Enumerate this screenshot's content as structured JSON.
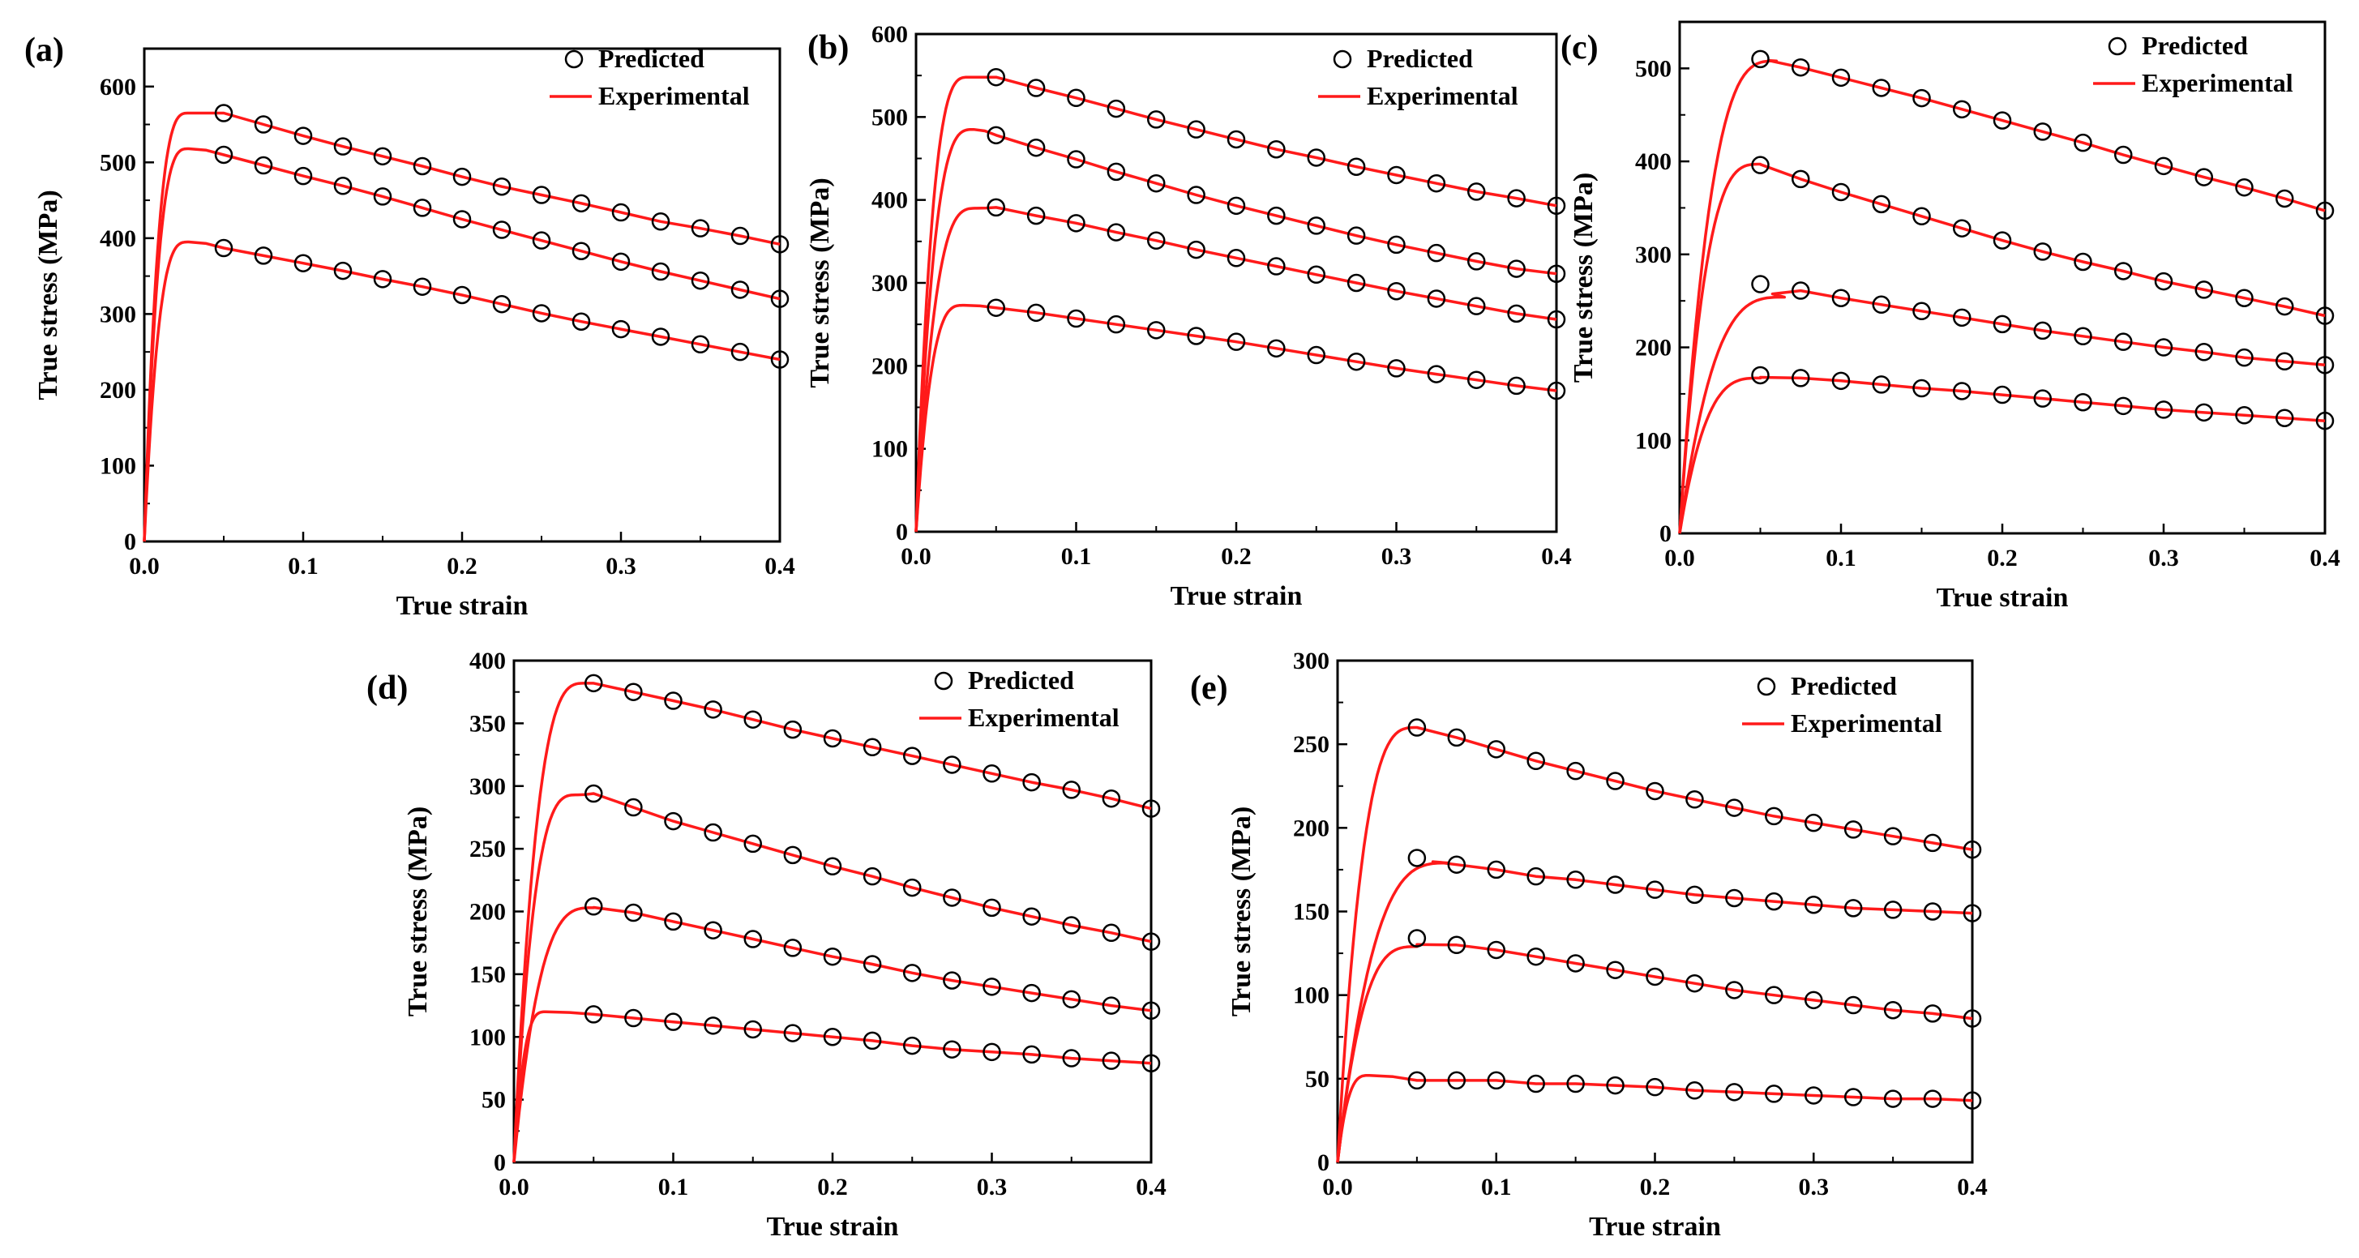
{
  "figure": {
    "legend": {
      "predicted": "Predicted",
      "experimental": "Experimental"
    },
    "colors": {
      "experimental": "#ff1a1a",
      "predicted_marker": "#000000",
      "axes": "#000000"
    }
  },
  "chart_data": [
    {
      "type": "line",
      "panel_label": "(a)",
      "xlabel": "True strain",
      "ylabel": "True stress (MPa)",
      "xlim": [
        0,
        0.4
      ],
      "ylim": [
        0,
        650
      ],
      "xticks": [
        0.0,
        0.1,
        0.2,
        0.3,
        0.4
      ],
      "xtick_labels": [
        "0.0",
        "0.1",
        "0.2",
        "0.3",
        "0.4"
      ],
      "yticks": [
        0,
        100,
        200,
        300,
        400,
        500,
        600
      ],
      "ytick_labels": [
        "0",
        "100",
        "200",
        "300",
        "400",
        "500",
        "600"
      ],
      "legend_position": "top-right",
      "predicted_x": [
        0.05,
        0.075,
        0.1,
        0.125,
        0.15,
        0.175,
        0.2,
        0.225,
        0.25,
        0.275,
        0.3,
        0.325,
        0.35,
        0.375,
        0.4
      ],
      "series": [
        {
          "name": "curve-1",
          "peak": 565,
          "peak_strain": 0.028,
          "predicted": [
            565,
            550,
            535,
            521,
            508,
            495,
            481,
            468,
            457,
            446,
            434,
            422,
            413,
            403,
            392
          ]
        },
        {
          "name": "curve-2",
          "peak": 518,
          "peak_strain": 0.028,
          "predicted": [
            510,
            496,
            482,
            469,
            455,
            440,
            425,
            411,
            397,
            383,
            369,
            356,
            344,
            332,
            320
          ]
        },
        {
          "name": "curve-3",
          "peak": 395,
          "peak_strain": 0.028,
          "predicted": [
            387,
            377,
            367,
            357,
            346,
            336,
            325,
            313,
            301,
            290,
            280,
            270,
            260,
            250,
            240
          ]
        }
      ]
    },
    {
      "type": "line",
      "panel_label": "(b)",
      "xlabel": "True strain",
      "ylabel": "True stress (MPa)",
      "xlim": [
        0,
        0.4
      ],
      "ylim": [
        0,
        600
      ],
      "xticks": [
        0.0,
        0.1,
        0.2,
        0.3,
        0.4
      ],
      "xtick_labels": [
        "0.0",
        "0.1",
        "0.2",
        "0.3",
        "0.4"
      ],
      "yticks": [
        0,
        100,
        200,
        300,
        400,
        500,
        600
      ],
      "ytick_labels": [
        "0",
        "100",
        "200",
        "300",
        "400",
        "500",
        "600"
      ],
      "legend_position": "top-right",
      "predicted_x": [
        0.05,
        0.075,
        0.1,
        0.125,
        0.15,
        0.175,
        0.2,
        0.225,
        0.25,
        0.275,
        0.3,
        0.325,
        0.35,
        0.375,
        0.4
      ],
      "series": [
        {
          "name": "curve-1",
          "peak": 548,
          "peak_strain": 0.033,
          "predicted": [
            548,
            535,
            523,
            510,
            497,
            485,
            473,
            461,
            451,
            440,
            430,
            420,
            410,
            402,
            393
          ]
        },
        {
          "name": "curve-2",
          "peak": 485,
          "peak_strain": 0.036,
          "predicted": [
            478,
            463,
            449,
            434,
            420,
            406,
            393,
            381,
            369,
            357,
            346,
            336,
            326,
            317,
            311
          ]
        },
        {
          "name": "curve-3",
          "peak": 390,
          "peak_strain": 0.038,
          "predicted": [
            391,
            381,
            372,
            361,
            351,
            340,
            330,
            320,
            310,
            300,
            290,
            281,
            272,
            263,
            256
          ]
        },
        {
          "name": "curve-4",
          "peak": 273,
          "peak_strain": 0.03,
          "predicted": [
            270,
            264,
            257,
            250,
            243,
            236,
            229,
            221,
            213,
            205,
            197,
            190,
            183,
            176,
            170
          ]
        }
      ]
    },
    {
      "type": "line",
      "panel_label": "(c)",
      "xlabel": "True strain",
      "ylabel": "True stress (MPa)",
      "xlim": [
        0,
        0.4
      ],
      "ylim": [
        0,
        550
      ],
      "xticks": [
        0.0,
        0.1,
        0.2,
        0.3,
        0.4
      ],
      "xtick_labels": [
        "0.0",
        "0.1",
        "0.2",
        "0.3",
        "0.4"
      ],
      "yticks": [
        0,
        100,
        200,
        300,
        400,
        500
      ],
      "ytick_labels": [
        "0",
        "100",
        "200",
        "300",
        "400",
        "500"
      ],
      "legend_position": "top-right",
      "predicted_x": [
        0.05,
        0.075,
        0.1,
        0.125,
        0.15,
        0.175,
        0.2,
        0.225,
        0.25,
        0.275,
        0.3,
        0.325,
        0.35,
        0.375,
        0.4
      ],
      "series": [
        {
          "name": "curve-1",
          "peak": 508,
          "peak_strain": 0.06,
          "predicted": [
            510,
            501,
            490,
            479,
            468,
            456,
            444,
            432,
            420,
            407,
            395,
            383,
            372,
            360,
            347
          ]
        },
        {
          "name": "curve-2",
          "peak": 397,
          "peak_strain": 0.05,
          "predicted": [
            396,
            381,
            367,
            354,
            341,
            328,
            315,
            303,
            292,
            282,
            271,
            262,
            253,
            244,
            234
          ]
        },
        {
          "name": "curve-3",
          "peak": 254,
          "peak_strain": 0.065,
          "predicted": [
            268,
            261,
            253,
            246,
            239,
            232,
            225,
            218,
            212,
            206,
            200,
            195,
            189,
            185,
            181
          ]
        },
        {
          "name": "curve-4",
          "peak": 167,
          "peak_strain": 0.05,
          "predicted": [
            170,
            167,
            164,
            160,
            156,
            153,
            149,
            145,
            141,
            137,
            133,
            130,
            127,
            124,
            121
          ]
        }
      ]
    },
    {
      "type": "line",
      "panel_label": "(d)",
      "xlabel": "True strain",
      "ylabel": "True stress (MPa)",
      "xlim": [
        0,
        0.4
      ],
      "ylim": [
        0,
        400
      ],
      "xticks": [
        0.0,
        0.1,
        0.2,
        0.3,
        0.4
      ],
      "xtick_labels": [
        "0.0",
        "0.1",
        "0.2",
        "0.3",
        "0.4"
      ],
      "yticks": [
        0,
        50,
        100,
        150,
        200,
        250,
        300,
        350,
        400
      ],
      "ytick_labels": [
        "0",
        "50",
        "100",
        "150",
        "200",
        "250",
        "300",
        "350",
        "400"
      ],
      "legend_position": "top-right",
      "predicted_x": [
        0.05,
        0.075,
        0.1,
        0.125,
        0.15,
        0.175,
        0.2,
        0.225,
        0.25,
        0.275,
        0.3,
        0.325,
        0.35,
        0.375,
        0.4
      ],
      "series": [
        {
          "name": "curve-1",
          "peak": 382,
          "peak_strain": 0.045,
          "predicted": [
            382,
            375,
            368,
            361,
            353,
            345,
            338,
            331,
            324,
            317,
            310,
            303,
            297,
            290,
            282
          ]
        },
        {
          "name": "curve-2",
          "peak": 293,
          "peak_strain": 0.04,
          "predicted": [
            294,
            283,
            272,
            263,
            254,
            245,
            236,
            228,
            219,
            211,
            203,
            196,
            189,
            183,
            176
          ]
        },
        {
          "name": "curve-3",
          "peak": 203,
          "peak_strain": 0.05,
          "predicted": [
            204,
            199,
            192,
            185,
            178,
            171,
            164,
            158,
            151,
            145,
            140,
            135,
            130,
            125,
            121
          ]
        },
        {
          "name": "curve-4",
          "peak": 120,
          "peak_strain": 0.02,
          "predicted": [
            118,
            115,
            112,
            109,
            106,
            103,
            100,
            97,
            93,
            90,
            88,
            86,
            83,
            81,
            79
          ]
        }
      ]
    },
    {
      "type": "line",
      "panel_label": "(e)",
      "xlabel": "True strain",
      "ylabel": "True stress (MPa)",
      "xlim": [
        0,
        0.4
      ],
      "ylim": [
        0,
        300
      ],
      "xticks": [
        0.0,
        0.1,
        0.2,
        0.3,
        0.4
      ],
      "xtick_labels": [
        "0.0",
        "0.1",
        "0.2",
        "0.3",
        "0.4"
      ],
      "yticks": [
        0,
        50,
        100,
        150,
        200,
        250,
        300
      ],
      "ytick_labels": [
        "0",
        "50",
        "100",
        "150",
        "200",
        "250",
        "300"
      ],
      "legend_position": "top-right",
      "predicted_x": [
        0.05,
        0.075,
        0.1,
        0.125,
        0.15,
        0.175,
        0.2,
        0.225,
        0.25,
        0.275,
        0.3,
        0.325,
        0.35,
        0.375,
        0.4
      ],
      "series": [
        {
          "name": "curve-1",
          "peak": 260,
          "peak_strain": 0.05,
          "predicted": [
            260,
            254,
            247,
            240,
            234,
            228,
            222,
            217,
            212,
            207,
            203,
            199,
            195,
            191,
            187
          ]
        },
        {
          "name": "curve-2",
          "peak": 179,
          "peak_strain": 0.07,
          "predicted": [
            182,
            178,
            175,
            171,
            169,
            166,
            163,
            160,
            158,
            156,
            154,
            152,
            151,
            150,
            149
          ]
        },
        {
          "name": "curve-3",
          "peak": 129,
          "peak_strain": 0.05,
          "predicted": [
            134,
            130,
            127,
            123,
            119,
            115,
            111,
            107,
            103,
            100,
            97,
            94,
            91,
            89,
            86
          ]
        },
        {
          "name": "curve-4",
          "peak": 52,
          "peak_strain": 0.02,
          "predicted": [
            49,
            49,
            49,
            47,
            47,
            46,
            45,
            43,
            42,
            41,
            40,
            39,
            38,
            38,
            37
          ]
        }
      ]
    }
  ]
}
